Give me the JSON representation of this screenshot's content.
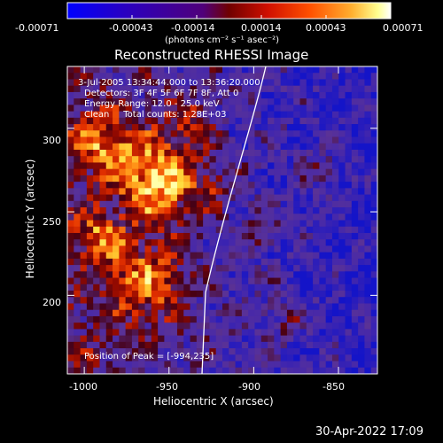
{
  "colorbar": {
    "ticks": [
      "-0.00071",
      "-0.00043",
      "-0.00014",
      "0.00014",
      "0.00043",
      "0.00071"
    ],
    "units": "(photons cm⁻² s⁻¹ asec⁻²)",
    "colors": [
      "#0000ff",
      "#3a00b0",
      "#6a007a",
      "#a01000",
      "#ff4000",
      "#ffa020",
      "#ffff80",
      "#ffffff"
    ]
  },
  "plot": {
    "title": "Reconstructed RHESSI Image",
    "annotations": {
      "time": "3-Jul-2005 13:34:44.000 to 13:36:20.000",
      "detectors": "Detectors: 3F 4F 5F 6F 7F 8F, Att 0",
      "energy": "Energy Range: 12.0 - 25.0 keV",
      "clean": "Clean     Total counts: 1.28E+03",
      "peak": "Position of Peak = [-994,235]"
    },
    "xlabel": "Heliocentric X (arcsec)",
    "ylabel": "Heliocentric Y (arcsec)",
    "xticks": [
      "-1000",
      "-950",
      "-900",
      "-850"
    ],
    "yticks": [
      "300",
      "250",
      "200"
    ],
    "xlim": [
      -1010,
      -827
    ],
    "ylim": [
      153,
      337
    ],
    "xtick_values": [
      -1000,
      -950,
      -900,
      -850
    ],
    "ytick_values": [
      300,
      250,
      200
    ]
  },
  "footer": {
    "date": "30-Apr-2022 17:09"
  }
}
